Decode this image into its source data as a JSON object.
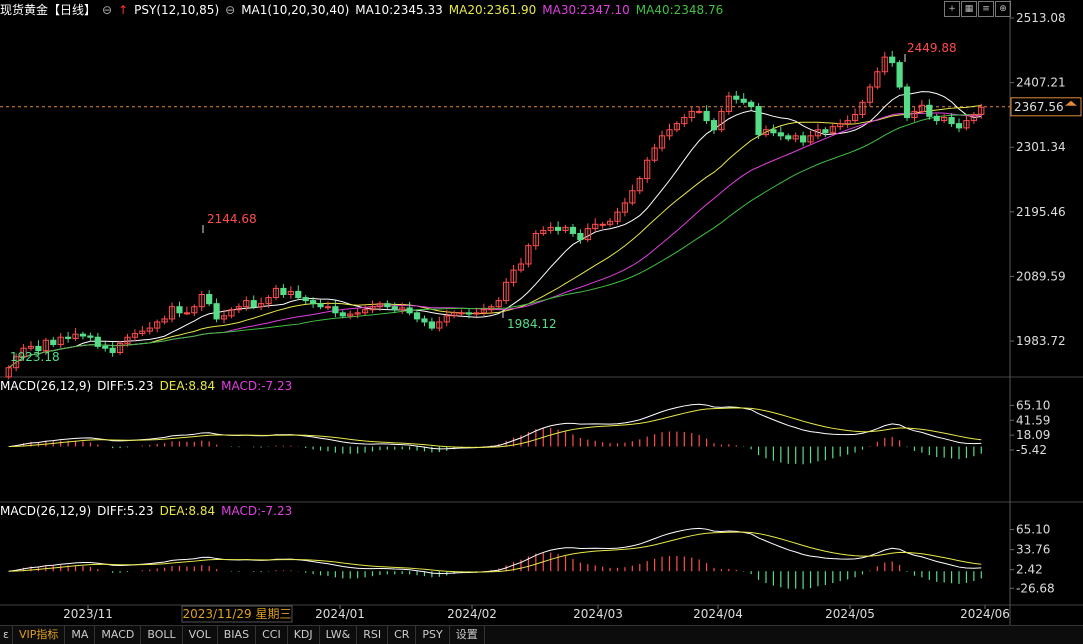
{
  "header": {
    "title": "现货黄金【日线】",
    "psy": "PSY(12,10,85)",
    "ma1": "MA1(10,20,30,40)",
    "ma10": "MA10:2345.33",
    "ma20": "MA20:2361.90",
    "ma30": "MA30:2347.10",
    "ma40": "MA40:2348.76"
  },
  "price_axis": [
    "2513.08",
    "2407.21",
    "2301.34",
    "2195.46",
    "2089.59",
    "1983.72"
  ],
  "current_price": "2367.56",
  "annotations": {
    "high1": "2144.68",
    "high2": "2449.88",
    "low1": "1984.12",
    "low0": "1923.18"
  },
  "macd1": {
    "label": "MACD(26,12,9)",
    "diff": "DIFF:5.23",
    "dea": "DEA:8.84",
    "macd": "MACD:-7.23",
    "axis": [
      "65.10",
      "41.59",
      "18.09",
      "-5.42"
    ]
  },
  "macd2": {
    "label": "MACD(26,12,9)",
    "diff": "DIFF:5.23",
    "dea": "DEA:8.84",
    "macd": "MACD:-7.23",
    "axis": [
      "65.10",
      "33.76",
      "2.42",
      "-26.68"
    ]
  },
  "date_axis": {
    "labels": [
      "2023/11",
      "2024/01",
      "2024/02",
      "2024/03",
      "2024/04",
      "2024/05",
      "2024/06"
    ],
    "cursor": "2023/11/29 星期三"
  },
  "tabs": [
    "VIP指标",
    "MA",
    "MACD",
    "BOLL",
    "VOL",
    "BIAS",
    "CCI",
    "KDJ",
    "LW&",
    "RSI",
    "CR",
    "PSY",
    "设置"
  ],
  "colors": {
    "up": "#ff4d4d",
    "down": "#55dd88",
    "ma10": "#ffffff",
    "ma20": "#e8e84a",
    "ma30": "#e040e0",
    "ma40": "#40c040",
    "diff": "#ffffff",
    "dea": "#e8e84a"
  },
  "chart_data": {
    "type": "candlestick",
    "symbol": "现货黄金",
    "period": "日线",
    "ylim": [
      1923.18,
      2513.08
    ],
    "annotated_values": {
      "max": 2449.88,
      "local_high": 2144.68,
      "local_low": 1984.12,
      "start_low": 1923.18
    },
    "closes": [
      1940,
      1958,
      1972,
      1975,
      1968,
      1985,
      1978,
      1990,
      1988,
      1995,
      1992,
      1990,
      1975,
      1972,
      1965,
      1980,
      1990,
      1996,
      2000,
      2005,
      2015,
      2020,
      2040,
      2030,
      2030,
      2040,
      2060,
      2045,
      2020,
      2025,
      2035,
      2040,
      2050,
      2040,
      2045,
      2055,
      2070,
      2060,
      2065,
      2055,
      2050,
      2045,
      2040,
      2040,
      2030,
      2025,
      2028,
      2030,
      2035,
      2040,
      2045,
      2040,
      2035,
      2038,
      2030,
      2020,
      2015,
      2005,
      2015,
      2025,
      2030,
      2030,
      2028,
      2030,
      2035,
      2040,
      2050,
      2080,
      2100,
      2110,
      2140,
      2160,
      2165,
      2170,
      2165,
      2170,
      2160,
      2150,
      2168,
      2175,
      2175,
      2180,
      2195,
      2210,
      2230,
      2250,
      2280,
      2300,
      2320,
      2330,
      2340,
      2350,
      2360,
      2360,
      2345,
      2330,
      2360,
      2385,
      2380,
      2375,
      2368,
      2322,
      2330,
      2325,
      2320,
      2315,
      2320,
      2310,
      2320,
      2330,
      2325,
      2335,
      2340,
      2345,
      2355,
      2375,
      2400,
      2425,
      2449,
      2440,
      2400,
      2350,
      2360,
      2370,
      2352,
      2345,
      2350,
      2340,
      2333,
      2345,
      2355,
      2367
    ]
  }
}
